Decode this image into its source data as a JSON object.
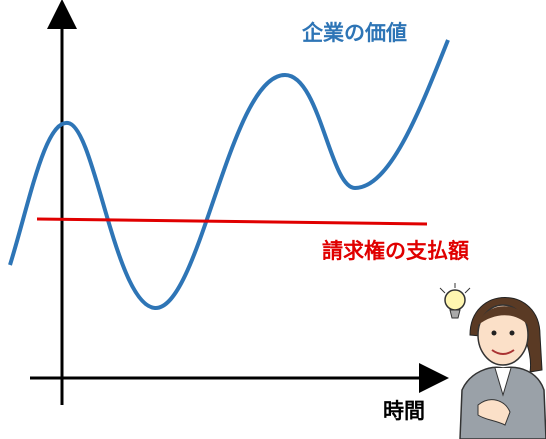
{
  "labels": {
    "value": "企業の価値",
    "claim": "請求権の支払額",
    "time": "時間"
  }
}
